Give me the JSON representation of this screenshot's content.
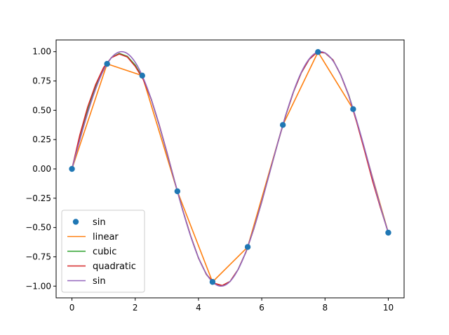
{
  "chart_data": {
    "type": "line",
    "title": "",
    "xlabel": "",
    "ylabel": "",
    "xlim": [
      -0.5,
      10.5
    ],
    "ylim": [
      -1.1,
      1.1
    ],
    "grid": false,
    "legend_position": "lower-left",
    "x_ticks": [
      0,
      2,
      4,
      6,
      8,
      10
    ],
    "x_tick_labels": [
      "0",
      "2",
      "4",
      "6",
      "8",
      "10"
    ],
    "y_ticks": [
      1.0,
      0.75,
      0.5,
      0.25,
      0.0,
      -0.25,
      -0.5,
      -0.75,
      -1.0
    ],
    "y_tick_labels": [
      "1.00",
      "0.75",
      "0.50",
      "0.25",
      "0.00",
      "−0.25",
      "−0.50",
      "−0.75",
      "−1.00"
    ],
    "series": [
      {
        "name": "sin",
        "style": "markers",
        "color": "#1f77b4",
        "x": [
          0,
          1.111,
          2.222,
          3.333,
          4.444,
          5.556,
          6.667,
          7.778,
          8.889,
          10.0
        ],
        "y": [
          0.0,
          0.896,
          0.796,
          -0.191,
          -0.964,
          -0.666,
          0.375,
          0.997,
          0.51,
          -0.544
        ]
      },
      {
        "name": "linear",
        "style": "line",
        "color": "#ff7f0e",
        "x": [
          0,
          1.111,
          2.222,
          3.333,
          4.444,
          5.556,
          6.667,
          7.778,
          8.889,
          10.0
        ],
        "y": [
          0.0,
          0.896,
          0.796,
          -0.191,
          -0.964,
          -0.666,
          0.375,
          0.997,
          0.51,
          -0.544
        ]
      },
      {
        "name": "cubic",
        "style": "line",
        "color": "#2ca02c",
        "x": [
          0,
          0.25,
          0.5,
          0.75,
          1.0,
          1.25,
          1.5,
          1.75,
          2.0,
          2.25,
          2.5,
          2.75,
          3.0,
          3.25,
          3.5,
          3.75,
          4.0,
          4.25,
          4.5,
          4.75,
          5.0,
          5.25,
          5.5,
          5.75,
          6.0,
          6.25,
          6.5,
          6.75,
          7.0,
          7.25,
          7.5,
          7.75,
          8.0,
          8.25,
          8.5,
          8.75,
          9.0,
          9.25,
          9.5,
          9.75,
          10.0
        ],
        "y": [
          0.0,
          0.26,
          0.5,
          0.7,
          0.86,
          0.95,
          0.985,
          0.96,
          0.885,
          0.77,
          0.6,
          0.38,
          0.14,
          -0.11,
          -0.35,
          -0.57,
          -0.76,
          -0.9,
          -0.98,
          -0.995,
          -0.96,
          -0.86,
          -0.71,
          -0.51,
          -0.28,
          -0.03,
          0.215,
          0.45,
          0.655,
          0.82,
          0.935,
          0.995,
          0.99,
          0.93,
          0.8,
          0.63,
          0.41,
          0.17,
          -0.08,
          -0.32,
          -0.544
        ]
      },
      {
        "name": "quadratic",
        "style": "line",
        "color": "#d62728",
        "x": [
          0,
          0.25,
          0.5,
          0.75,
          1.0,
          1.25,
          1.5,
          1.75,
          2.0,
          2.25,
          2.5,
          2.75,
          3.0,
          3.25,
          3.5,
          3.75,
          4.0,
          4.25,
          4.5,
          4.75,
          5.0,
          5.25,
          5.5,
          5.75,
          6.0,
          6.25,
          6.5,
          6.75,
          7.0,
          7.25,
          7.5,
          7.75,
          8.0,
          8.25,
          8.5,
          8.75,
          9.0,
          9.25,
          9.5,
          9.75,
          10.0
        ],
        "y": [
          0.0,
          0.29,
          0.53,
          0.72,
          0.865,
          0.95,
          0.98,
          0.955,
          0.875,
          0.765,
          0.6,
          0.385,
          0.145,
          -0.11,
          -0.35,
          -0.57,
          -0.76,
          -0.9,
          -0.975,
          -0.995,
          -0.96,
          -0.86,
          -0.71,
          -0.51,
          -0.28,
          -0.03,
          0.215,
          0.45,
          0.655,
          0.82,
          0.935,
          0.995,
          0.99,
          0.93,
          0.8,
          0.625,
          0.4,
          0.155,
          -0.1,
          -0.33,
          -0.544
        ]
      },
      {
        "name": "sin",
        "style": "line",
        "color": "#9467bd",
        "function": "sin",
        "x_range": [
          0,
          10
        ]
      }
    ],
    "legend": [
      "sin",
      "linear",
      "cubic",
      "quadratic",
      "sin"
    ]
  }
}
